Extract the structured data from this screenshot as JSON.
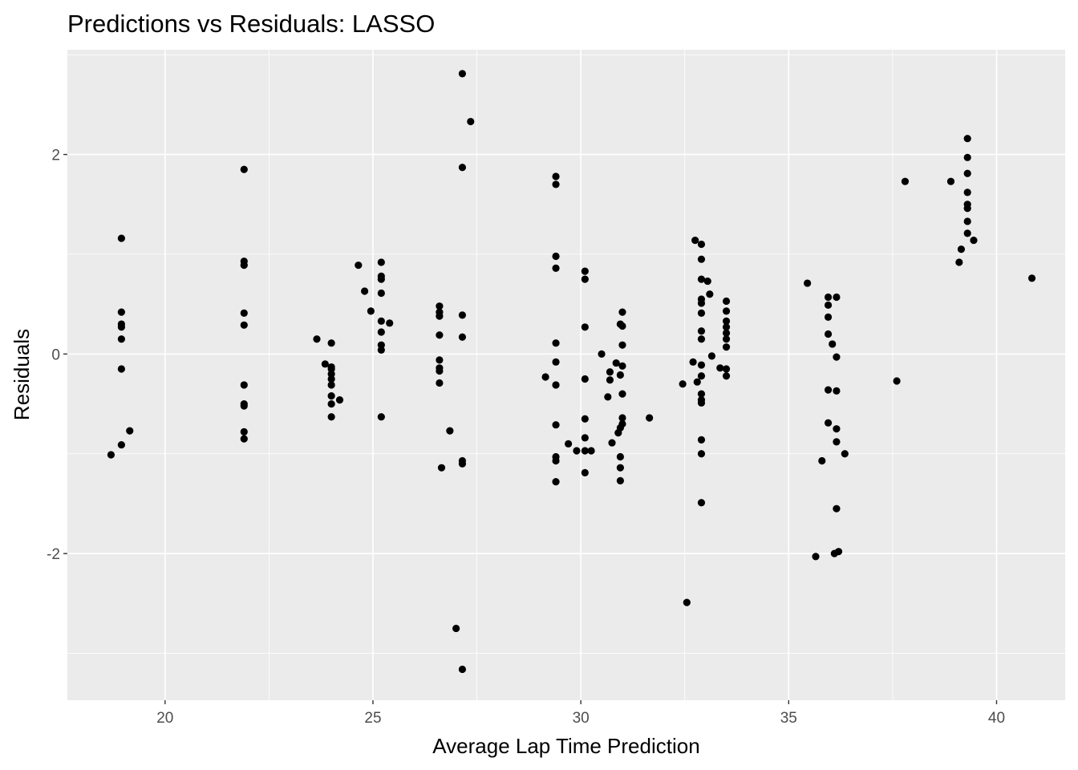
{
  "chart_data": {
    "type": "scatter",
    "title": "Predictions vs Residuals: LASSO",
    "xlabel": "Average Lap Time Prediction",
    "ylabel": "Residuals",
    "xlim": [
      17.65,
      41.65
    ],
    "ylim": [
      -3.47,
      3.05
    ],
    "x_ticks": [
      20,
      25,
      30,
      35,
      40
    ],
    "x_tick_labels": [
      "20",
      "25",
      "30",
      "35",
      "40"
    ],
    "y_ticks": [
      -2,
      0,
      2
    ],
    "y_tick_labels": [
      "-2",
      "0",
      "2"
    ],
    "grid": true,
    "legend": "none",
    "colors": {
      "panel": "#ebebeb",
      "grid_major": "#ffffff",
      "point": "#000000",
      "tick_label": "#4d4d4d",
      "tick_mark": "#333333"
    },
    "points": [
      {
        "x": 18.7,
        "y": -1.01
      },
      {
        "x": 18.95,
        "y": 1.16
      },
      {
        "x": 18.95,
        "y": 0.42
      },
      {
        "x": 18.95,
        "y": 0.3
      },
      {
        "x": 18.95,
        "y": 0.27
      },
      {
        "x": 18.95,
        "y": 0.15
      },
      {
        "x": 18.95,
        "y": -0.15
      },
      {
        "x": 18.95,
        "y": -0.91
      },
      {
        "x": 19.15,
        "y": -0.77
      },
      {
        "x": 21.9,
        "y": 1.85
      },
      {
        "x": 21.9,
        "y": 0.93
      },
      {
        "x": 21.9,
        "y": 0.89
      },
      {
        "x": 21.9,
        "y": 0.41
      },
      {
        "x": 21.9,
        "y": 0.29
      },
      {
        "x": 21.9,
        "y": -0.31
      },
      {
        "x": 21.9,
        "y": -0.5
      },
      {
        "x": 21.9,
        "y": -0.52
      },
      {
        "x": 21.9,
        "y": -0.78
      },
      {
        "x": 21.9,
        "y": -0.85
      },
      {
        "x": 23.65,
        "y": 0.15
      },
      {
        "x": 23.85,
        "y": -0.1
      },
      {
        "x": 24.0,
        "y": 0.11
      },
      {
        "x": 24.0,
        "y": -0.13
      },
      {
        "x": 24.0,
        "y": -0.15
      },
      {
        "x": 24.0,
        "y": -0.2
      },
      {
        "x": 24.0,
        "y": -0.25
      },
      {
        "x": 24.0,
        "y": -0.31
      },
      {
        "x": 24.0,
        "y": -0.42
      },
      {
        "x": 24.0,
        "y": -0.5
      },
      {
        "x": 24.0,
        "y": -0.63
      },
      {
        "x": 24.2,
        "y": -0.46
      },
      {
        "x": 24.65,
        "y": 0.89
      },
      {
        "x": 24.8,
        "y": 0.63
      },
      {
        "x": 24.95,
        "y": 0.43
      },
      {
        "x": 25.2,
        "y": 0.92
      },
      {
        "x": 25.2,
        "y": 0.78
      },
      {
        "x": 25.2,
        "y": 0.75
      },
      {
        "x": 25.2,
        "y": 0.61
      },
      {
        "x": 25.2,
        "y": 0.33
      },
      {
        "x": 25.2,
        "y": 0.22
      },
      {
        "x": 25.2,
        "y": 0.09
      },
      {
        "x": 25.2,
        "y": 0.04
      },
      {
        "x": 25.2,
        "y": -0.63
      },
      {
        "x": 25.4,
        "y": 0.31
      },
      {
        "x": 26.6,
        "y": 0.48
      },
      {
        "x": 26.6,
        "y": 0.42
      },
      {
        "x": 26.6,
        "y": 0.38
      },
      {
        "x": 26.6,
        "y": 0.19
      },
      {
        "x": 26.6,
        "y": -0.06
      },
      {
        "x": 26.6,
        "y": -0.14
      },
      {
        "x": 26.6,
        "y": -0.17
      },
      {
        "x": 26.6,
        "y": -0.29
      },
      {
        "x": 26.65,
        "y": -1.14
      },
      {
        "x": 26.85,
        "y": -0.77
      },
      {
        "x": 27.0,
        "y": -2.75
      },
      {
        "x": 27.15,
        "y": 2.81
      },
      {
        "x": 27.15,
        "y": 1.87
      },
      {
        "x": 27.15,
        "y": 0.39
      },
      {
        "x": 27.15,
        "y": 0.17
      },
      {
        "x": 27.15,
        "y": -1.07
      },
      {
        "x": 27.15,
        "y": -1.1
      },
      {
        "x": 27.15,
        "y": -3.16
      },
      {
        "x": 27.35,
        "y": 2.33
      },
      {
        "x": 29.15,
        "y": -0.23
      },
      {
        "x": 29.4,
        "y": 1.78
      },
      {
        "x": 29.4,
        "y": 1.7
      },
      {
        "x": 29.4,
        "y": 0.98
      },
      {
        "x": 29.4,
        "y": 0.86
      },
      {
        "x": 29.4,
        "y": 0.11
      },
      {
        "x": 29.4,
        "y": -0.08
      },
      {
        "x": 29.4,
        "y": -0.31
      },
      {
        "x": 29.4,
        "y": -0.71
      },
      {
        "x": 29.4,
        "y": -1.03
      },
      {
        "x": 29.4,
        "y": -1.07
      },
      {
        "x": 29.4,
        "y": -1.28
      },
      {
        "x": 29.7,
        "y": -0.9
      },
      {
        "x": 29.9,
        "y": -0.97
      },
      {
        "x": 30.1,
        "y": 0.83
      },
      {
        "x": 30.1,
        "y": 0.75
      },
      {
        "x": 30.1,
        "y": 0.27
      },
      {
        "x": 30.1,
        "y": -0.25
      },
      {
        "x": 30.1,
        "y": -0.65
      },
      {
        "x": 30.1,
        "y": -0.84
      },
      {
        "x": 30.1,
        "y": -0.97
      },
      {
        "x": 30.1,
        "y": -1.19
      },
      {
        "x": 30.25,
        "y": -0.97
      },
      {
        "x": 30.5,
        "y": 0.0
      },
      {
        "x": 30.65,
        "y": -0.43
      },
      {
        "x": 30.7,
        "y": -0.18
      },
      {
        "x": 30.7,
        "y": -0.26
      },
      {
        "x": 30.75,
        "y": -0.89
      },
      {
        "x": 30.85,
        "y": -0.09
      },
      {
        "x": 30.9,
        "y": -0.79
      },
      {
        "x": 30.95,
        "y": 0.3
      },
      {
        "x": 30.95,
        "y": -0.21
      },
      {
        "x": 30.95,
        "y": -0.74
      },
      {
        "x": 30.95,
        "y": -1.03
      },
      {
        "x": 30.95,
        "y": -1.14
      },
      {
        "x": 30.95,
        "y": -1.27
      },
      {
        "x": 31.0,
        "y": 0.42
      },
      {
        "x": 31.0,
        "y": 0.28
      },
      {
        "x": 31.0,
        "y": 0.09
      },
      {
        "x": 31.0,
        "y": -0.12
      },
      {
        "x": 31.0,
        "y": -0.4
      },
      {
        "x": 31.0,
        "y": -0.64
      },
      {
        "x": 31.0,
        "y": -0.7
      },
      {
        "x": 31.65,
        "y": -0.64
      },
      {
        "x": 32.45,
        "y": -0.3
      },
      {
        "x": 32.55,
        "y": -2.49
      },
      {
        "x": 32.7,
        "y": -0.08
      },
      {
        "x": 32.75,
        "y": 1.14
      },
      {
        "x": 32.8,
        "y": -0.28
      },
      {
        "x": 32.9,
        "y": 1.1
      },
      {
        "x": 32.9,
        "y": 0.95
      },
      {
        "x": 32.9,
        "y": 0.75
      },
      {
        "x": 32.9,
        "y": 0.55
      },
      {
        "x": 32.9,
        "y": 0.51
      },
      {
        "x": 32.9,
        "y": 0.41
      },
      {
        "x": 32.9,
        "y": 0.23
      },
      {
        "x": 32.9,
        "y": 0.15
      },
      {
        "x": 32.9,
        "y": -0.11
      },
      {
        "x": 32.9,
        "y": -0.22
      },
      {
        "x": 32.9,
        "y": -0.4
      },
      {
        "x": 32.9,
        "y": -0.46
      },
      {
        "x": 32.9,
        "y": -0.49
      },
      {
        "x": 32.9,
        "y": -0.86
      },
      {
        "x": 32.9,
        "y": -1.0
      },
      {
        "x": 32.9,
        "y": -1.49
      },
      {
        "x": 33.05,
        "y": 0.73
      },
      {
        "x": 33.1,
        "y": 0.6
      },
      {
        "x": 33.15,
        "y": -0.02
      },
      {
        "x": 33.35,
        "y": -0.14
      },
      {
        "x": 33.5,
        "y": 0.53
      },
      {
        "x": 33.5,
        "y": 0.43
      },
      {
        "x": 33.5,
        "y": 0.33
      },
      {
        "x": 33.5,
        "y": 0.27
      },
      {
        "x": 33.5,
        "y": 0.21
      },
      {
        "x": 33.5,
        "y": 0.15
      },
      {
        "x": 33.5,
        "y": 0.07
      },
      {
        "x": 33.5,
        "y": -0.15
      },
      {
        "x": 33.5,
        "y": -0.22
      },
      {
        "x": 35.45,
        "y": 0.71
      },
      {
        "x": 35.65,
        "y": -2.03
      },
      {
        "x": 35.8,
        "y": -1.07
      },
      {
        "x": 35.95,
        "y": 0.57
      },
      {
        "x": 35.95,
        "y": 0.49
      },
      {
        "x": 35.95,
        "y": 0.37
      },
      {
        "x": 35.95,
        "y": 0.2
      },
      {
        "x": 35.95,
        "y": -0.36
      },
      {
        "x": 35.95,
        "y": -0.69
      },
      {
        "x": 36.05,
        "y": 0.1
      },
      {
        "x": 36.1,
        "y": -2.0
      },
      {
        "x": 36.15,
        "y": 0.57
      },
      {
        "x": 36.15,
        "y": -0.03
      },
      {
        "x": 36.15,
        "y": -0.37
      },
      {
        "x": 36.15,
        "y": -0.75
      },
      {
        "x": 36.15,
        "y": -0.88
      },
      {
        "x": 36.15,
        "y": -1.55
      },
      {
        "x": 36.2,
        "y": -1.98
      },
      {
        "x": 36.35,
        "y": -1.0
      },
      {
        "x": 37.6,
        "y": -0.27
      },
      {
        "x": 37.8,
        "y": 1.73
      },
      {
        "x": 38.9,
        "y": 1.73
      },
      {
        "x": 39.1,
        "y": 0.92
      },
      {
        "x": 39.15,
        "y": 1.05
      },
      {
        "x": 39.3,
        "y": 2.16
      },
      {
        "x": 39.3,
        "y": 1.97
      },
      {
        "x": 39.3,
        "y": 1.81
      },
      {
        "x": 39.3,
        "y": 1.62
      },
      {
        "x": 39.3,
        "y": 1.5
      },
      {
        "x": 39.3,
        "y": 1.46
      },
      {
        "x": 39.3,
        "y": 1.33
      },
      {
        "x": 39.3,
        "y": 1.21
      },
      {
        "x": 39.45,
        "y": 1.14
      },
      {
        "x": 40.85,
        "y": 0.76
      }
    ]
  }
}
